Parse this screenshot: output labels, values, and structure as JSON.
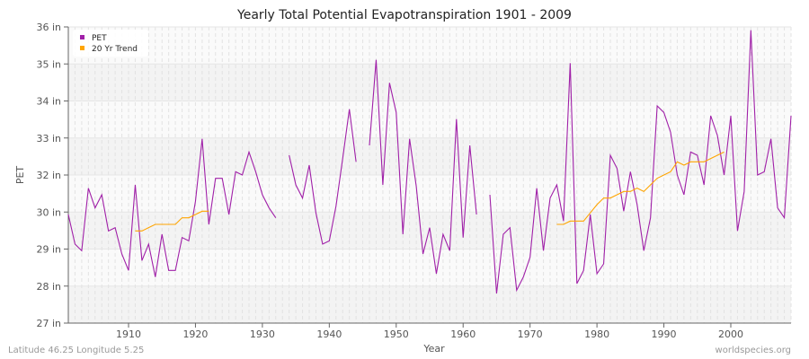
{
  "chart_data": {
    "type": "line",
    "title": "Yearly Total Potential Evapotranspiration 1901 - 2009",
    "xlabel": "Year",
    "ylabel": "PET",
    "xlim": [
      1901,
      2009
    ],
    "ylim": [
      27,
      36
    ],
    "y_tick_labels": [
      "36 in",
      "35 in",
      "34 in",
      "33 in",
      "32 in",
      "30 in",
      "29 in",
      "28 in",
      "27 in"
    ],
    "x_ticks": [
      1910,
      1920,
      1930,
      1940,
      1950,
      1960,
      1970,
      1980,
      1990,
      2000
    ],
    "grid": true,
    "legend_position": "top-left",
    "series": [
      {
        "name": "PET",
        "color": "#a020a8",
        "start_year": 1901,
        "values": [
          30.3,
          29.4,
          29.2,
          31.1,
          30.5,
          30.9,
          29.8,
          29.9,
          29.1,
          28.6,
          31.2,
          28.9,
          29.4,
          28.4,
          29.7,
          28.6,
          28.6,
          29.6,
          29.5,
          30.7,
          32.6,
          30.0,
          31.4,
          31.4,
          30.3,
          31.6,
          31.5,
          32.2,
          31.6,
          30.9,
          30.5,
          30.2,
          null,
          32.1,
          31.2,
          30.8,
          31.8,
          30.35,
          29.4,
          29.5,
          30.55,
          32.0,
          33.5,
          31.9,
          null,
          32.4,
          35.0,
          31.2,
          34.3,
          33.4,
          29.7,
          32.6,
          31.15,
          29.1,
          29.9,
          28.5,
          29.7,
          29.2,
          33.2,
          29.6,
          32.4,
          30.3,
          null,
          30.9,
          27.9,
          29.7,
          29.9,
          28.0,
          28.4,
          29.0,
          31.1,
          29.2,
          30.8,
          31.2,
          30.1,
          34.9,
          28.2,
          28.6,
          30.3,
          28.5,
          28.8,
          32.1,
          31.7,
          30.4,
          31.6,
          30.6,
          29.2,
          30.2,
          33.6,
          33.4,
          32.8,
          31.5,
          30.9,
          32.2,
          32.1,
          31.2,
          33.3,
          32.7,
          31.5,
          33.3,
          29.8,
          31.0,
          35.9,
          31.5,
          31.6,
          32.6,
          30.5,
          30.2,
          33.3
        ]
      },
      {
        "name": "20 Yr Trend",
        "color": "#ffa500",
        "start_year": 1911,
        "values": [
          29.8,
          29.8,
          29.9,
          30.0,
          30.0,
          30.0,
          30.0,
          30.2,
          30.2,
          30.3,
          30.4,
          30.4
        ]
      },
      {
        "name": "20 Yr Trend (late)",
        "color": "#ffa500",
        "start_year": 1974,
        "values": [
          30.0,
          30.0,
          30.1,
          30.1,
          30.1,
          30.35,
          30.6,
          30.8,
          30.8,
          30.9,
          31.0,
          31.0,
          31.1,
          31.0,
          31.2,
          31.4,
          31.5,
          31.6,
          31.9,
          31.8,
          31.9,
          31.9,
          31.9,
          32.0,
          32.1,
          32.2
        ]
      }
    ]
  },
  "legend": {
    "pet": "PET",
    "trend": "20 Yr Trend"
  },
  "footer": {
    "location": "Latitude 46.25 Longitude 5.25",
    "site": "worldspecies.org"
  }
}
